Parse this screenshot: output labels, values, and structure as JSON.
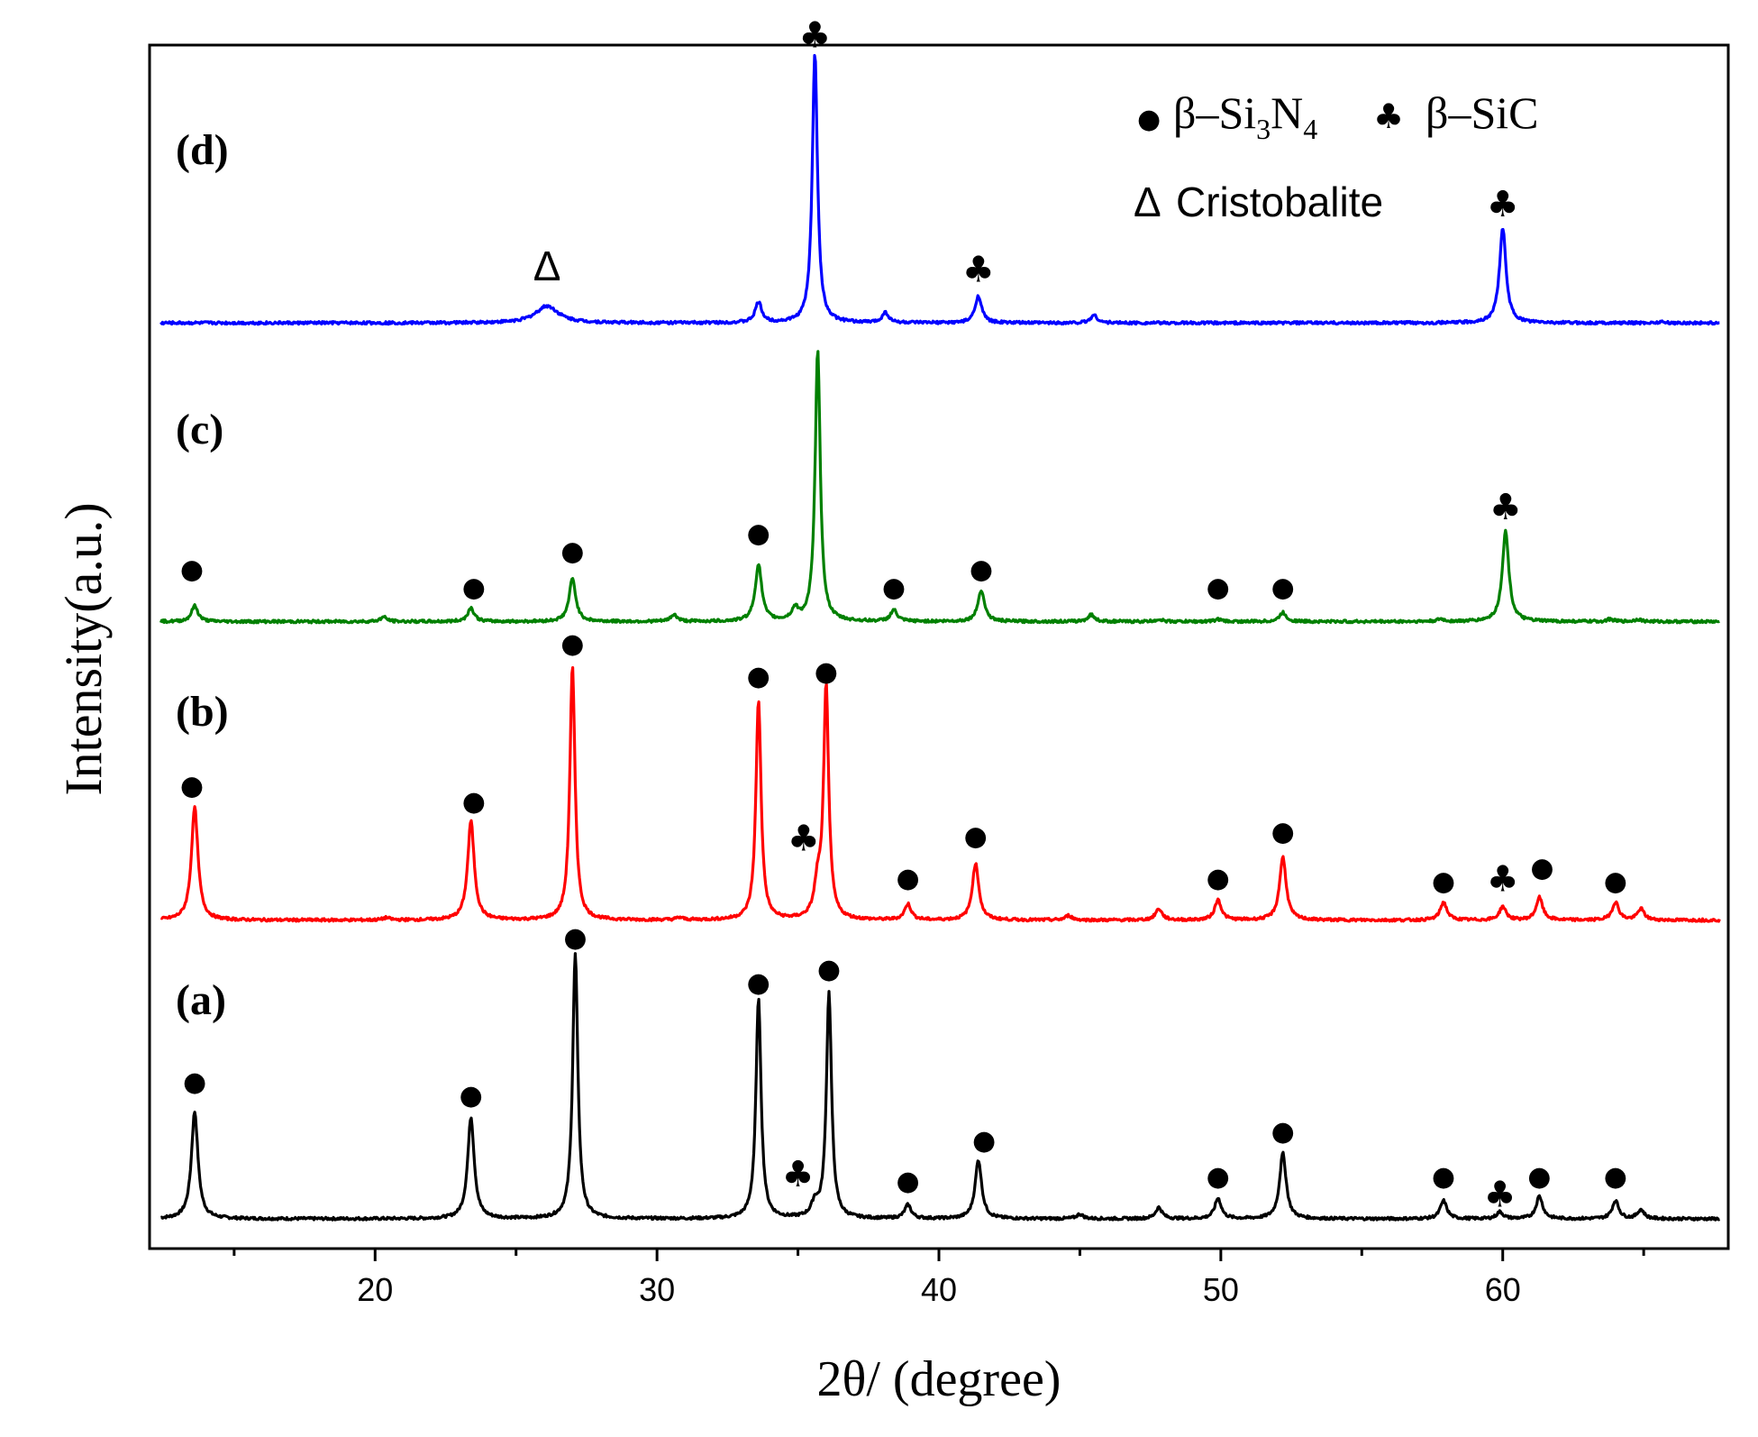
{
  "chart_data": {
    "type": "line",
    "title": "",
    "xlabel": "2θ/ (degree)",
    "ylabel": "Intensity(a.u.)",
    "xlim": [
      12,
      68
    ],
    "xticks": [
      20,
      30,
      40,
      50,
      60
    ],
    "xticks_minor": [
      15,
      25,
      35,
      45,
      55,
      65
    ],
    "y_ticks_shown": false,
    "legend": {
      "position": "top-right",
      "entries": [
        {
          "symbol": "●",
          "label": "β–Si",
          "sub1": "3",
          "mid": "N",
          "sub2": "4",
          "phase": "beta-Si3N4"
        },
        {
          "symbol": "♣",
          "label": "β–SiC",
          "phase": "beta-SiC"
        },
        {
          "symbol": "Δ",
          "label": "Cristobalite",
          "phase": "cristobalite"
        }
      ]
    },
    "series": [
      {
        "name": "(a)",
        "color": "#000000",
        "baseline": 0,
        "peaks": [
          [
            13.6,
            95
          ],
          [
            23.4,
            90
          ],
          [
            27.1,
            235
          ],
          [
            33.6,
            195
          ],
          [
            35.6,
            12
          ],
          [
            36.1,
            200
          ],
          [
            38.9,
            12
          ],
          [
            41.4,
            52
          ],
          [
            45.0,
            4
          ],
          [
            47.8,
            10
          ],
          [
            49.9,
            18
          ],
          [
            52.2,
            58
          ],
          [
            57.9,
            16
          ],
          [
            59.9,
            6
          ],
          [
            61.3,
            20
          ],
          [
            64.0,
            16
          ],
          [
            64.9,
            8
          ]
        ],
        "markers": [
          {
            "x": 13.6,
            "y": 122,
            "symbol": "●"
          },
          {
            "x": 23.4,
            "y": 110,
            "symbol": "●"
          },
          {
            "x": 27.1,
            "y": 250,
            "symbol": "●"
          },
          {
            "x": 33.6,
            "y": 210,
            "symbol": "●"
          },
          {
            "x": 35.0,
            "y": 40,
            "symbol": "♣"
          },
          {
            "x": 36.1,
            "y": 222,
            "symbol": "●"
          },
          {
            "x": 38.9,
            "y": 34,
            "symbol": "●"
          },
          {
            "x": 41.6,
            "y": 70,
            "symbol": "●"
          },
          {
            "x": 49.9,
            "y": 38,
            "symbol": "●"
          },
          {
            "x": 52.2,
            "y": 78,
            "symbol": "●"
          },
          {
            "x": 57.9,
            "y": 38,
            "symbol": "●"
          },
          {
            "x": 59.9,
            "y": 22,
            "symbol": "♣"
          },
          {
            "x": 61.3,
            "y": 38,
            "symbol": "●"
          },
          {
            "x": 64.0,
            "y": 38,
            "symbol": "●"
          }
        ]
      },
      {
        "name": "(b)",
        "color": "#ff0000",
        "baseline": 265,
        "peaks": [
          [
            13.6,
            100
          ],
          [
            20.4,
            2
          ],
          [
            23.4,
            88
          ],
          [
            27.0,
            225
          ],
          [
            30.8,
            2
          ],
          [
            33.6,
            195
          ],
          [
            35.7,
            28
          ],
          [
            36.0,
            205
          ],
          [
            38.9,
            14
          ],
          [
            41.3,
            50
          ],
          [
            44.6,
            4
          ],
          [
            47.8,
            10
          ],
          [
            49.9,
            18
          ],
          [
            52.2,
            56
          ],
          [
            57.9,
            16
          ],
          [
            60.0,
            12
          ],
          [
            61.3,
            20
          ],
          [
            64.0,
            16
          ],
          [
            64.9,
            10
          ]
        ],
        "markers": [
          {
            "x": 13.5,
            "y": 120,
            "symbol": "●"
          },
          {
            "x": 23.5,
            "y": 106,
            "symbol": "●"
          },
          {
            "x": 27.0,
            "y": 246,
            "symbol": "●"
          },
          {
            "x": 33.6,
            "y": 217,
            "symbol": "●"
          },
          {
            "x": 35.2,
            "y": 73,
            "symbol": "♣"
          },
          {
            "x": 36.0,
            "y": 221,
            "symbol": "●"
          },
          {
            "x": 38.9,
            "y": 38,
            "symbol": "●"
          },
          {
            "x": 41.3,
            "y": 75,
            "symbol": "●"
          },
          {
            "x": 49.9,
            "y": 38,
            "symbol": "●"
          },
          {
            "x": 52.2,
            "y": 79,
            "symbol": "●"
          },
          {
            "x": 57.9,
            "y": 35,
            "symbol": "●"
          },
          {
            "x": 60.0,
            "y": 37,
            "symbol": "♣"
          },
          {
            "x": 61.4,
            "y": 47,
            "symbol": "●"
          },
          {
            "x": 64.0,
            "y": 35,
            "symbol": "●"
          }
        ]
      },
      {
        "name": "(c)",
        "color": "#008000",
        "baseline": 530,
        "peaks": [
          [
            13.6,
            14
          ],
          [
            20.3,
            4
          ],
          [
            23.4,
            12
          ],
          [
            27.0,
            38
          ],
          [
            30.6,
            6
          ],
          [
            33.6,
            50
          ],
          [
            34.9,
            10
          ],
          [
            35.7,
            240
          ],
          [
            38.4,
            10
          ],
          [
            41.5,
            28
          ],
          [
            45.4,
            6
          ],
          [
            47.8,
            2
          ],
          [
            49.9,
            2
          ],
          [
            52.2,
            8
          ],
          [
            57.8,
            2
          ],
          [
            60.1,
            80
          ],
          [
            63.8,
            2
          ],
          [
            64.8,
            2
          ]
        ],
        "markers": [
          {
            "x": 13.5,
            "y": 47,
            "symbol": "●"
          },
          {
            "x": 23.5,
            "y": 31,
            "symbol": "●"
          },
          {
            "x": 27.0,
            "y": 63,
            "symbol": "●"
          },
          {
            "x": 33.6,
            "y": 79,
            "symbol": "●"
          },
          {
            "x": 38.4,
            "y": 31,
            "symbol": "●"
          },
          {
            "x": 41.5,
            "y": 47,
            "symbol": "●"
          },
          {
            "x": 49.9,
            "y": 31,
            "symbol": "●"
          },
          {
            "x": 52.2,
            "y": 31,
            "symbol": "●"
          },
          {
            "x": 60.1,
            "y": 102,
            "symbol": "♣"
          }
        ]
      },
      {
        "name": "(d)",
        "color": "#0000ff",
        "baseline": 795,
        "peaks": [
          [
            26.1,
            15
          ],
          [
            33.6,
            18
          ],
          [
            35.6,
            240
          ],
          [
            38.1,
            9
          ],
          [
            41.4,
            24
          ],
          [
            45.5,
            7
          ],
          [
            60.0,
            84
          ],
          [
            65.6,
            1
          ]
        ],
        "markers": [
          {
            "x": 26.1,
            "y": 50,
            "symbol": "Δ"
          },
          {
            "x": 35.6,
            "y": 256,
            "symbol": "♣"
          },
          {
            "x": 41.4,
            "y": 48,
            "symbol": "♣"
          },
          {
            "x": 60.0,
            "y": 106,
            "symbol": "♣"
          }
        ]
      }
    ]
  }
}
